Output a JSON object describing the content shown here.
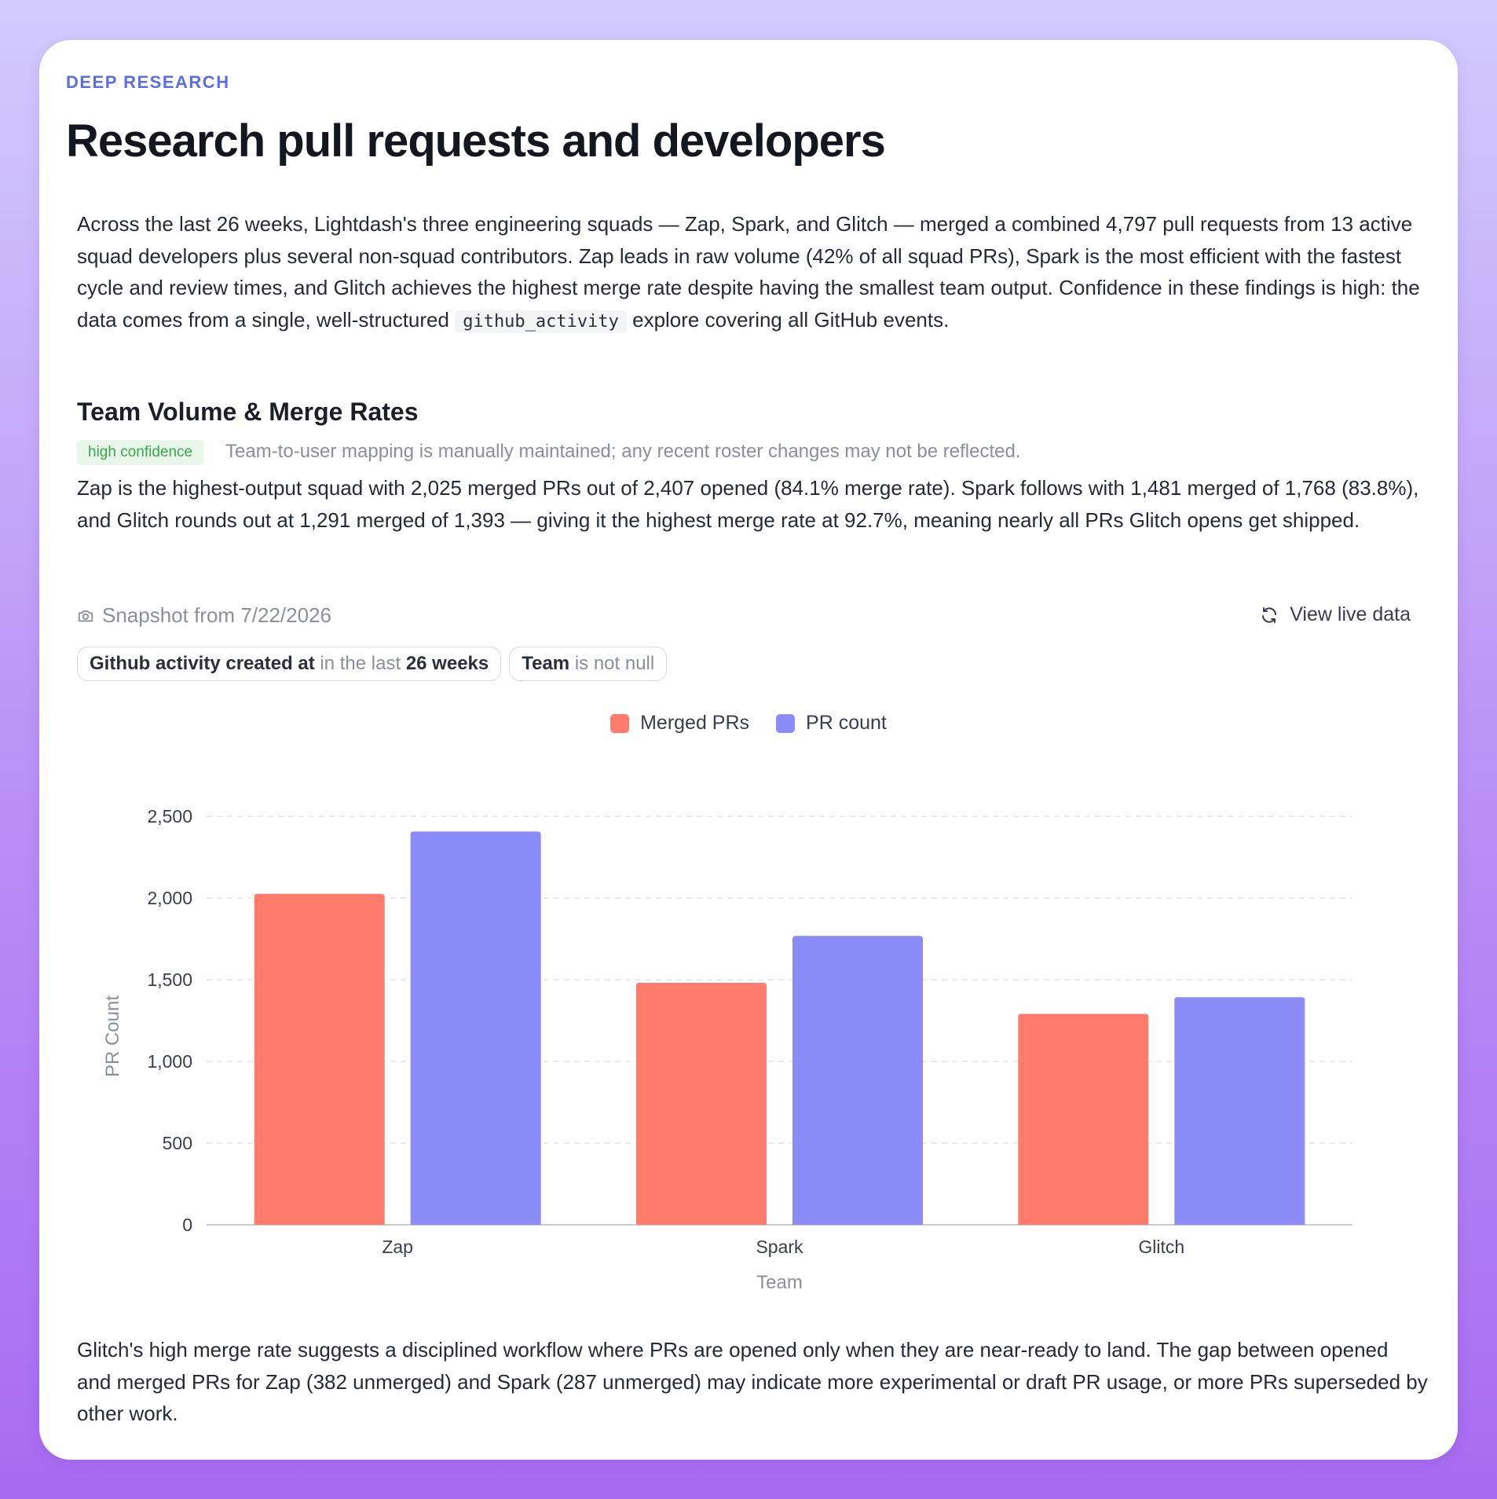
{
  "eyebrow": "DEEP RESEARCH",
  "title": "Research pull requests and developers",
  "intro": {
    "text_before_code": "Across the last 26 weeks, Lightdash's three engineering squads — Zap, Spark, and Glitch — merged a combined 4,797 pull requests from 13 active squad developers plus several non-squad contributors. Zap leads in raw volume (42% of all squad PRs), Spark is the most efficient with the fastest cycle and review times, and Glitch achieves the highest merge rate despite having the smallest team output. Confidence in these findings is high: the data comes from a single, well-structured ",
    "code": "github_activity",
    "text_after_code": " explore covering all GitHub events."
  },
  "section": {
    "title": "Team Volume & Merge Rates",
    "badge": "high confidence",
    "badge_note": "Team-to-user mapping is manually maintained; any recent roster changes may not be reflected.",
    "finding": "Zap is the highest-output squad with 2,025 merged PRs out of 2,407 opened (84.1% merge rate). Spark follows with 1,481 merged of 1,768 (83.8%), and Glitch rounds out at 1,291 merged of 1,393 — giving it the highest merge rate at 92.7%, meaning nearly all PRs Glitch opens get shipped."
  },
  "snapshot": {
    "label": "Snapshot from 7/22/2026",
    "icon": "camera-icon",
    "live_label": "View live data",
    "live_icon": "refresh-icon"
  },
  "filters": [
    {
      "field": "Github activity created at",
      "op": " in the last ",
      "value": "26 weeks"
    },
    {
      "field": "Team",
      "op": " is not null",
      "value": ""
    }
  ],
  "chart_data": {
    "type": "bar",
    "categories": [
      "Zap",
      "Spark",
      "Glitch"
    ],
    "series": [
      {
        "name": "Merged PRs",
        "color": "#ff7b6b",
        "values": [
          2025,
          1481,
          1291
        ]
      },
      {
        "name": "PR count",
        "color": "#8b8cf8",
        "values": [
          2407,
          1768,
          1393
        ]
      }
    ],
    "xlabel": "Team",
    "ylabel": "PR Count",
    "ylim": [
      0,
      2500
    ],
    "yticks": [
      0,
      500,
      1000,
      1500,
      2000,
      2500
    ],
    "ytick_labels": [
      "0",
      "500",
      "1,000",
      "1,500",
      "2,000",
      "2,500"
    ],
    "grid": true,
    "legend_position": "top-center"
  },
  "closing": "Glitch's high merge rate suggests a disciplined workflow where PRs are opened only when they are near-ready to land. The gap between opened and merged PRs for Zap (382 unmerged) and Spark (287 unmerged) may indicate more experimental or draft PR usage, or more PRs superseded by other work."
}
